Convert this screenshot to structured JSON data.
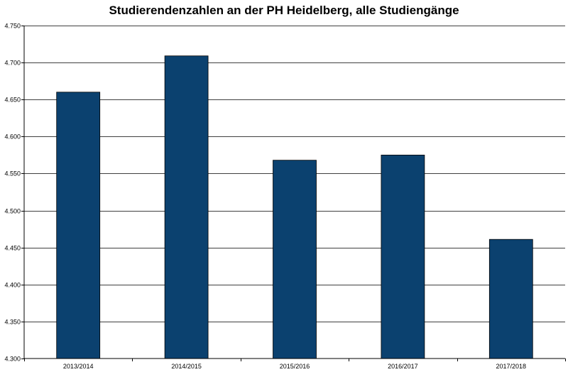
{
  "chart_data": {
    "type": "bar",
    "title": "Studierendenzahlen an der PH Heidelberg, alle Studiengänge",
    "xlabel": "",
    "ylabel": "",
    "categories": [
      "2013/2014",
      "2014/2015",
      "2015/2016",
      "2016/2017",
      "2017/2018"
    ],
    "values": [
      4660,
      4709,
      4568,
      4575,
      4461
    ],
    "ylim": [
      4300,
      4750
    ],
    "yticks": [
      4300,
      4350,
      4400,
      4450,
      4500,
      4550,
      4600,
      4650,
      4700,
      4750
    ],
    "ytick_labels": [
      "4.300",
      "4.350",
      "4.400",
      "4.450",
      "4.500",
      "4.550",
      "4.600",
      "4.650",
      "4.700",
      "4.750"
    ],
    "grid": true,
    "bar_color": "#0b416f",
    "legend": "none"
  }
}
